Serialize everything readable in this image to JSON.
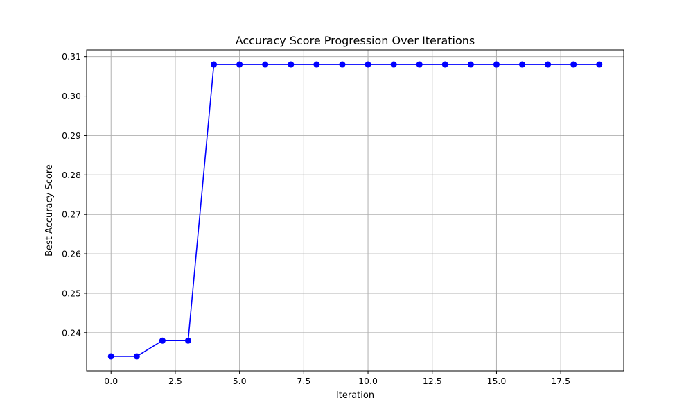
{
  "chart_data": {
    "type": "line",
    "title": "Accuracy Score Progression Over Iterations",
    "xlabel": "Iteration",
    "ylabel": "Best Accuracy Score",
    "xlim": [
      -0.95,
      19.95
    ],
    "ylim": [
      0.2303,
      0.3117
    ],
    "xticks": [
      0.0,
      2.5,
      5.0,
      7.5,
      10.0,
      12.5,
      15.0,
      17.5
    ],
    "xtick_labels": [
      "0.0",
      "2.5",
      "5.0",
      "7.5",
      "10.0",
      "12.5",
      "15.0",
      "17.5"
    ],
    "yticks": [
      0.24,
      0.25,
      0.26,
      0.27,
      0.28,
      0.29,
      0.3,
      0.31
    ],
    "ytick_labels": [
      "0.24",
      "0.25",
      "0.26",
      "0.27",
      "0.28",
      "0.29",
      "0.30",
      "0.31"
    ],
    "grid": true,
    "color": "#0000ff",
    "marker": "circle",
    "series": [
      {
        "x": [
          0,
          1,
          2,
          3,
          4,
          5,
          6,
          7,
          8,
          9,
          10,
          11,
          12,
          13,
          14,
          15,
          16,
          17,
          18,
          19
        ],
        "values": [
          0.234,
          0.234,
          0.238,
          0.238,
          0.308,
          0.308,
          0.308,
          0.308,
          0.308,
          0.308,
          0.308,
          0.308,
          0.308,
          0.308,
          0.308,
          0.308,
          0.308,
          0.308,
          0.308,
          0.308
        ]
      }
    ]
  }
}
